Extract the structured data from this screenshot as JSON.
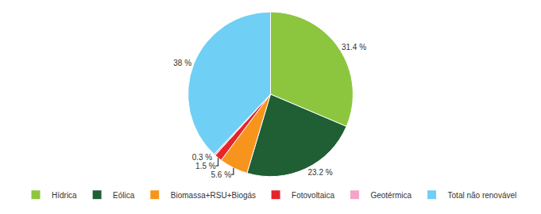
{
  "chart_data": {
    "type": "pie",
    "categories": [
      "Hídrica",
      "Eólica",
      "Biomassa+RSU+Biogás",
      "Fotovoltaica",
      "Geotérmica",
      "Total não renovável"
    ],
    "values": [
      31.4,
      23.2,
      5.6,
      1.5,
      0.3,
      38
    ],
    "value_labels": [
      "31.4 %",
      "23.2 %",
      "5.6 %",
      "1.5 %",
      "0.3 %",
      "38 %"
    ],
    "colors": [
      "#8cc63e",
      "#1f5f33",
      "#f7941d",
      "#e4262a",
      "#f5a3c7",
      "#6fcff5"
    ],
    "data_labels": true,
    "legend": "bottom"
  }
}
